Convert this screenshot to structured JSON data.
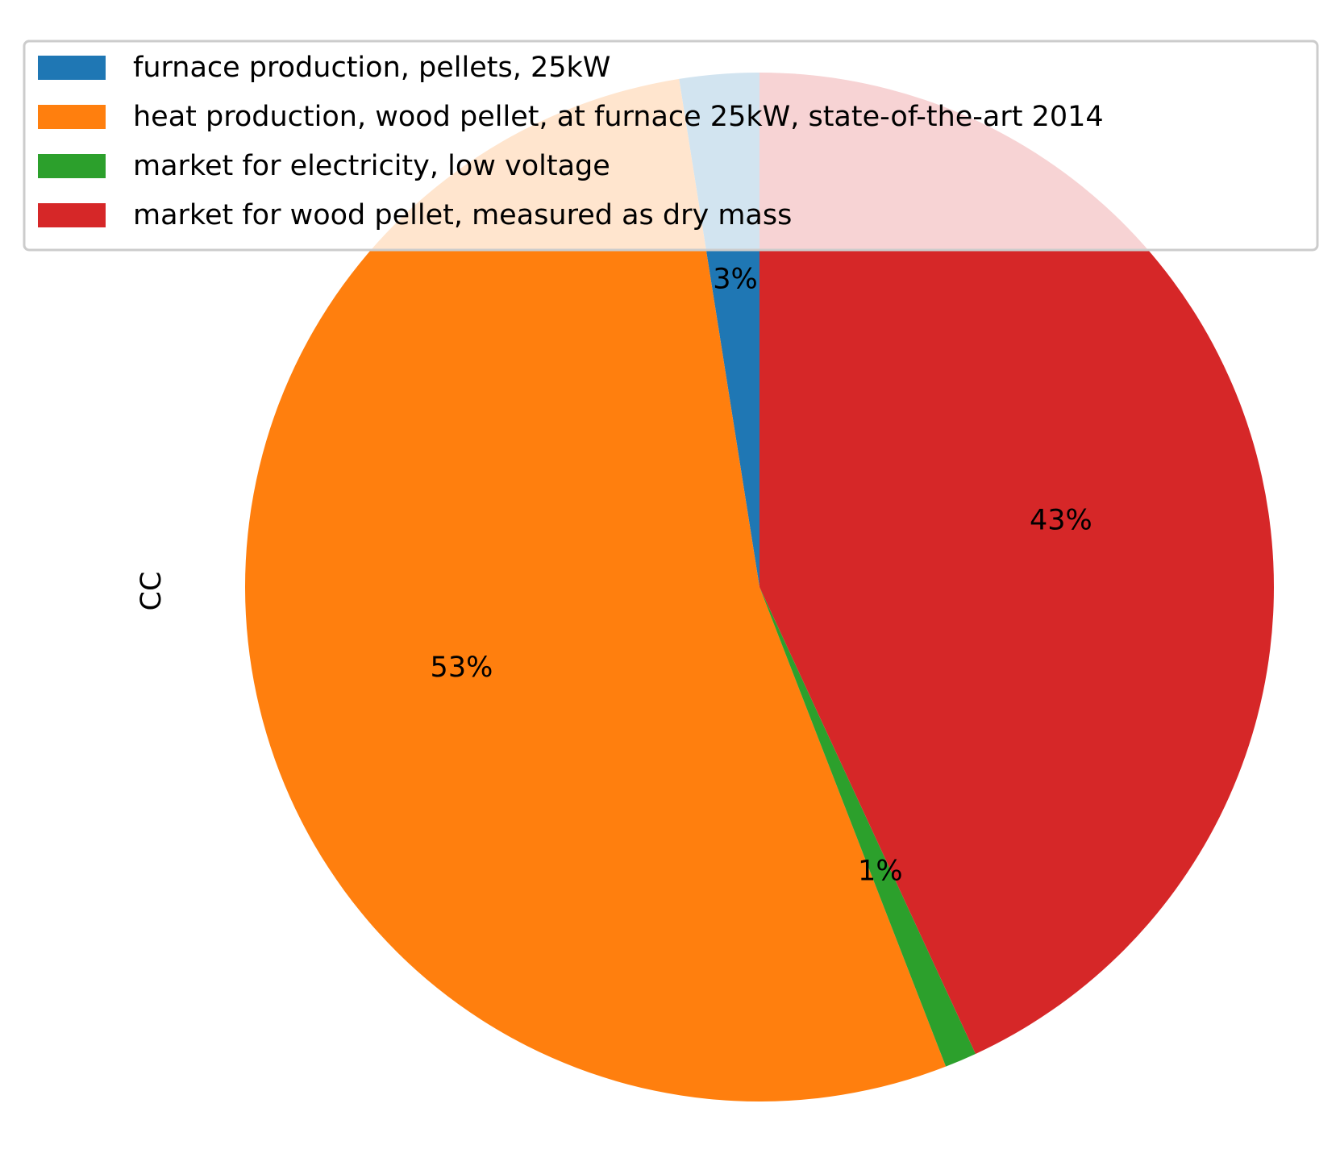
{
  "chart_data": {
    "type": "pie",
    "ylabel": "CC",
    "categories": [
      "furnace production, pellets, 25kW",
      "heat production, wood pellet, at furnace 25kW, state-of-the-art 2014",
      "market for electricity, low voltage",
      "market for wood pellet, measured as dry mass"
    ],
    "values": [
      2.5,
      53.4,
      1.0,
      43.1
    ],
    "value_labels": [
      "3%",
      "53%",
      "1%",
      "43%"
    ],
    "colors": [
      "#1f77b4",
      "#ff7f0e",
      "#2ca02c",
      "#d62728"
    ],
    "start_angle_deg": 90,
    "direction": "counterclockwise",
    "legend": {
      "placement": "top",
      "overlaps_pie": true
    }
  }
}
